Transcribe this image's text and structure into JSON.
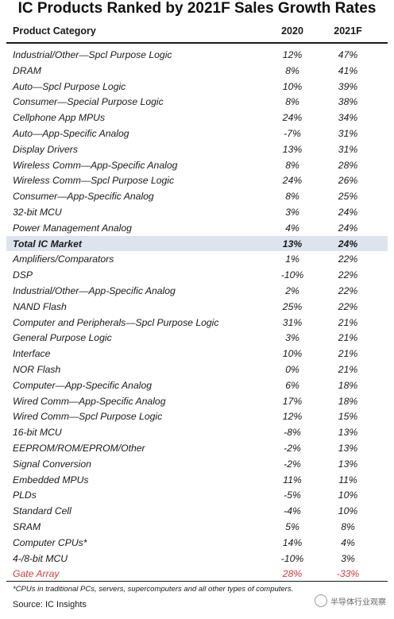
{
  "title": "IC Products Ranked by 2021F Sales Growth Rates",
  "columns": {
    "category": "Product Category",
    "y2020": "2020",
    "y2021": "2021F"
  },
  "rows": [
    {
      "category": "Industrial/Other—Spcl Purpose Logic",
      "v2020": "12%",
      "v2021": "47%"
    },
    {
      "category": "DRAM",
      "v2020": "8%",
      "v2021": "41%"
    },
    {
      "category": "Auto—Spcl Purpose Logic",
      "v2020": "10%",
      "v2021": "39%"
    },
    {
      "category": "Consumer—Special Purpose Logic",
      "v2020": "8%",
      "v2021": "38%"
    },
    {
      "category": "Cellphone App MPUs",
      "v2020": "24%",
      "v2021": "34%"
    },
    {
      "category": "Auto—App-Specific Analog",
      "v2020": "-7%",
      "v2021": "31%"
    },
    {
      "category": "Display Drivers",
      "v2020": "13%",
      "v2021": "31%"
    },
    {
      "category": "Wireless Comm—App-Specific Analog",
      "v2020": "8%",
      "v2021": "28%"
    },
    {
      "category": "Wireless Comm—Spcl Purpose Logic",
      "v2020": "24%",
      "v2021": "26%"
    },
    {
      "category": "Consumer—App-Specific Analog",
      "v2020": "8%",
      "v2021": "25%"
    },
    {
      "category": "32-bit MCU",
      "v2020": "3%",
      "v2021": "24%"
    },
    {
      "category": "Power Management Analog",
      "v2020": "4%",
      "v2021": "24%"
    },
    {
      "category": "Total IC Market",
      "v2020": "13%",
      "v2021": "24%"
    },
    {
      "category": "Amplifiers/Comparators",
      "v2020": "1%",
      "v2021": "22%"
    },
    {
      "category": "DSP",
      "v2020": "-10%",
      "v2021": "22%"
    },
    {
      "category": "Industrial/Other—App-Specific Analog",
      "v2020": "2%",
      "v2021": "22%"
    },
    {
      "category": "NAND Flash",
      "v2020": "25%",
      "v2021": "22%"
    },
    {
      "category": "Computer and Peripherals—Spcl Purpose Logic",
      "v2020": "31%",
      "v2021": "21%"
    },
    {
      "category": "General Purpose Logic",
      "v2020": "3%",
      "v2021": "21%"
    },
    {
      "category": "Interface",
      "v2020": "10%",
      "v2021": "21%"
    },
    {
      "category": "NOR Flash",
      "v2020": "0%",
      "v2021": "21%"
    },
    {
      "category": "Computer—App-Specific Analog",
      "v2020": "6%",
      "v2021": "18%"
    },
    {
      "category": "Wired Comm—App-Specific Analog",
      "v2020": "17%",
      "v2021": "18%"
    },
    {
      "category": "Wired Comm—Spcl Purpose Logic",
      "v2020": "12%",
      "v2021": "15%"
    },
    {
      "category": "16-bit MCU",
      "v2020": "-8%",
      "v2021": "13%"
    },
    {
      "category": "EEPROM/ROM/EPROM/Other",
      "v2020": "-2%",
      "v2021": "13%"
    },
    {
      "category": "Signal Conversion",
      "v2020": "-2%",
      "v2021": "13%"
    },
    {
      "category": "Embedded MPUs",
      "v2020": "11%",
      "v2021": "11%"
    },
    {
      "category": "PLDs",
      "v2020": "-5%",
      "v2021": "10%"
    },
    {
      "category": "Standard Cell",
      "v2020": "-4%",
      "v2021": "10%"
    },
    {
      "category": "SRAM",
      "v2020": "5%",
      "v2021": "8%"
    },
    {
      "category": "Computer CPUs*",
      "v2020": "14%",
      "v2021": "4%"
    },
    {
      "category": "4-/8-bit MCU",
      "v2020": "-10%",
      "v2021": "3%"
    },
    {
      "category": "Gate Array",
      "v2020": "28%",
      "v2021": "-33%"
    }
  ],
  "highlight_color": "#dde4ee",
  "negative_color": "#d93a3a",
  "footnote": "*CPUs in traditional PCs, servers, supercomputers and all other types of computers.",
  "source": "Source:  IC Insights",
  "watermark": "半导体行业观察",
  "watermark_icon": "wechat-icon"
}
